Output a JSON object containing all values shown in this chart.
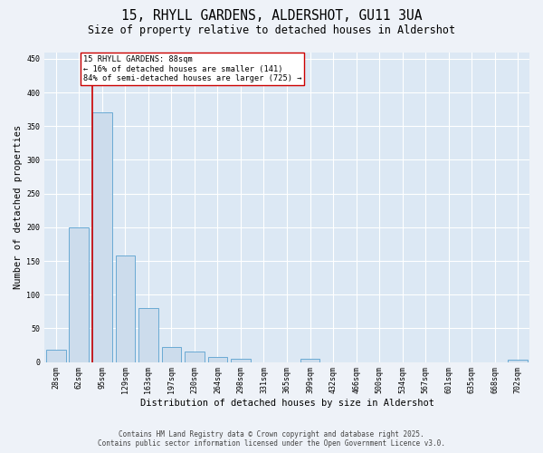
{
  "title1": "15, RHYLL GARDENS, ALDERSHOT, GU11 3UA",
  "title2": "Size of property relative to detached houses in Aldershot",
  "xlabel": "Distribution of detached houses by size in Aldershot",
  "ylabel": "Number of detached properties",
  "categories": [
    "28sqm",
    "62sqm",
    "95sqm",
    "129sqm",
    "163sqm",
    "197sqm",
    "230sqm",
    "264sqm",
    "298sqm",
    "331sqm",
    "365sqm",
    "399sqm",
    "432sqm",
    "466sqm",
    "500sqm",
    "534sqm",
    "567sqm",
    "601sqm",
    "635sqm",
    "668sqm",
    "702sqm"
  ],
  "values": [
    18,
    200,
    370,
    158,
    80,
    22,
    15,
    8,
    5,
    0,
    0,
    5,
    0,
    0,
    0,
    0,
    0,
    0,
    0,
    0,
    4
  ],
  "bar_color": "#ccdcec",
  "bar_edge_color": "#6aaad4",
  "vline_color": "#cc0000",
  "annotation_text": "15 RHYLL GARDENS: 88sqm\n← 16% of detached houses are smaller (141)\n84% of semi-detached houses are larger (725) →",
  "annotation_box_color": "#ffffff",
  "annotation_box_edge": "#cc0000",
  "ylim": [
    0,
    460
  ],
  "yticks": [
    0,
    50,
    100,
    150,
    200,
    250,
    300,
    350,
    400,
    450
  ],
  "footer_line1": "Contains HM Land Registry data © Crown copyright and database right 2025.",
  "footer_line2": "Contains public sector information licensed under the Open Government Licence v3.0.",
  "bg_color": "#eef2f8",
  "plot_bg_color": "#dce8f4",
  "grid_color": "#ffffff",
  "title1_fontsize": 10.5,
  "title2_fontsize": 8.5,
  "tick_fontsize": 6,
  "axis_label_fontsize": 7.5,
  "footer_fontsize": 5.5,
  "annotation_fontsize": 6.2
}
